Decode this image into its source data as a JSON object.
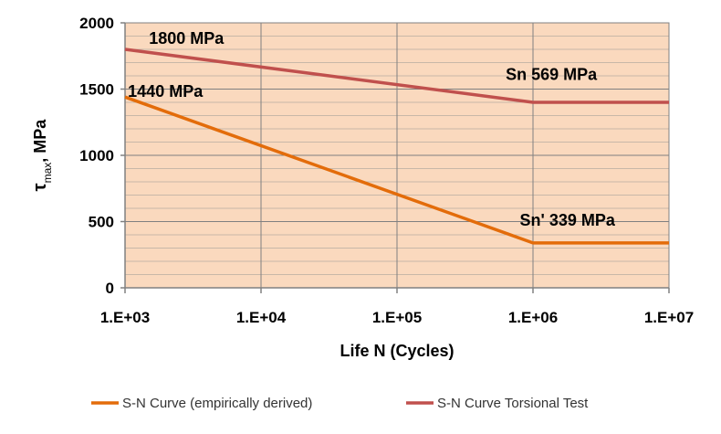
{
  "chart_data": {
    "type": "line",
    "title": "",
    "xlabel": "Life N  (Cycles)",
    "ylabel": {
      "main": "τ",
      "sub": "max",
      "rest": ", MPa"
    },
    "xscale": "log",
    "xlim": [
      1000,
      10000000
    ],
    "ylim": [
      0,
      2000
    ],
    "x_ticks": [
      {
        "value": 1000,
        "label": "1.E+03"
      },
      {
        "value": 10000,
        "label": "1.E+04"
      },
      {
        "value": 100000,
        "label": "1.E+05"
      },
      {
        "value": 1000000,
        "label": "1.E+06"
      },
      {
        "value": 10000000,
        "label": "1.E+07"
      }
    ],
    "y_ticks": [
      {
        "value": 0,
        "label": "0"
      },
      {
        "value": 500,
        "label": "500"
      },
      {
        "value": 1000,
        "label": "1000"
      },
      {
        "value": 1500,
        "label": "1500"
      },
      {
        "value": 2000,
        "label": "2000"
      }
    ],
    "grid": true,
    "minor_grid_step": 100,
    "series": [
      {
        "name": "S-N Curve (empirically derived)",
        "color": "#E36C0A",
        "points": [
          {
            "x": 1000,
            "y": 1440
          },
          {
            "x": 1000000,
            "y": 339
          },
          {
            "x": 10000000,
            "y": 339
          }
        ]
      },
      {
        "name": "S-N Curve Torsional Test",
        "color": "#C0504D",
        "points": [
          {
            "x": 1000,
            "y": 1800
          },
          {
            "x": 1000000,
            "y": 1400
          },
          {
            "x": 10000000,
            "y": 1400
          }
        ]
      }
    ],
    "annotations": [
      {
        "text": "1800 MPa",
        "x": 1500,
        "y": 1840
      },
      {
        "text": "1440 MPa",
        "x": 1050,
        "y": 1440
      },
      {
        "text": "Sn 569 MPa",
        "x": 630000,
        "y": 1570
      },
      {
        "text": "Sn' 339 MPa",
        "x": 800000,
        "y": 470
      }
    ],
    "legend_position": "bottom",
    "plot_background": "#FAD9BE",
    "grid_color": "#808080"
  }
}
